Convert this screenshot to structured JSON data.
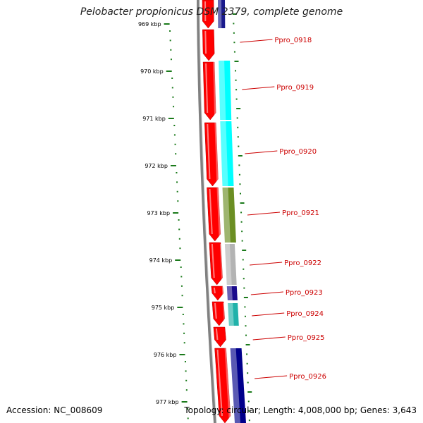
{
  "header": {
    "title": "Pelobacter propionicus DSM 2379, complete genome"
  },
  "footer": {
    "accession": "Accession: NC_008609",
    "summary": "Topology: circular; Length: 4,008,000 bp; Genes: 3,643"
  },
  "colors": {
    "forward_gene": "#ff0000",
    "backbone": "#808080",
    "tick": "#1a7a1a",
    "label": "#cc0000"
  },
  "axis": {
    "unit": "kbp",
    "ticks": [
      "969 kbp",
      "970 kbp",
      "971 kbp",
      "972 kbp",
      "973 kbp",
      "974 kbp",
      "975 kbp",
      "976 kbp",
      "977 kbp"
    ]
  },
  "genes": [
    {
      "label": "Ppro_0918",
      "color": "#ff0000"
    },
    {
      "label": "Ppro_0919",
      "color": "#00ffff"
    },
    {
      "label": "Ppro_0920",
      "color": "#00ffff"
    },
    {
      "label": "Ppro_0921",
      "color": "#6b8e23"
    },
    {
      "label": "Ppro_0922",
      "color": "#b3b3b3"
    },
    {
      "label": "Ppro_0923",
      "color": "#1a0a8c"
    },
    {
      "label": "Ppro_0924",
      "color": "#20b2aa"
    },
    {
      "label": "Ppro_0925",
      "color": "#ff0000"
    },
    {
      "label": "Ppro_0926",
      "color": "#00008b"
    }
  ]
}
